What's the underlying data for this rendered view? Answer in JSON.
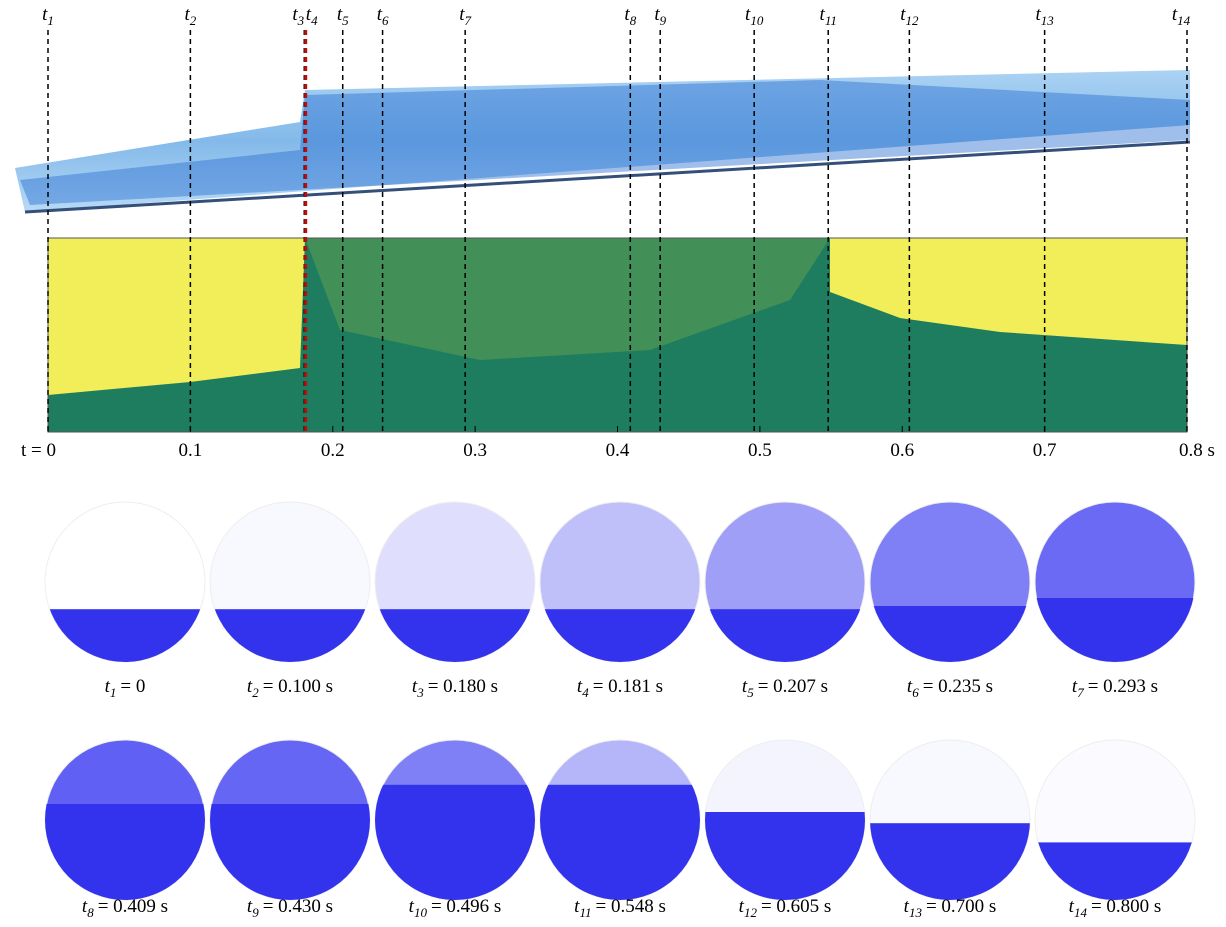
{
  "chart_data": {
    "type": "event-timeline",
    "xlim": [
      0,
      0.8
    ],
    "xticks": [
      {
        "value": 0,
        "label": "t = 0"
      },
      0.1,
      0.2,
      0.3,
      0.4,
      0.5,
      0.6,
      0.7,
      {
        "value": 0.8,
        "label": "0.8 s"
      }
    ],
    "events": {
      "symbol": "t",
      "subscripts": [
        "1",
        "2",
        "3",
        "4",
        "5",
        "6",
        "7",
        "8",
        "9",
        "10",
        "11",
        "12",
        "13",
        "14"
      ],
      "x": [
        0,
        0.1,
        0.18,
        0.181,
        0.207,
        0.235,
        0.293,
        0.409,
        0.43,
        0.496,
        0.548,
        0.605,
        0.7,
        0.8
      ]
    },
    "snapshots": [
      "= 0",
      "= 0.100 s",
      "= 0.180 s",
      "= 0.181 s",
      "= 0.207 s",
      "= 0.235 s",
      "= 0.293 s",
      "= 0.409 s",
      "= 0.430 s",
      "= 0.496 s",
      "= 0.548 s",
      "= 0.605 s",
      "= 0.700 s",
      "= 0.800 s"
    ]
  }
}
